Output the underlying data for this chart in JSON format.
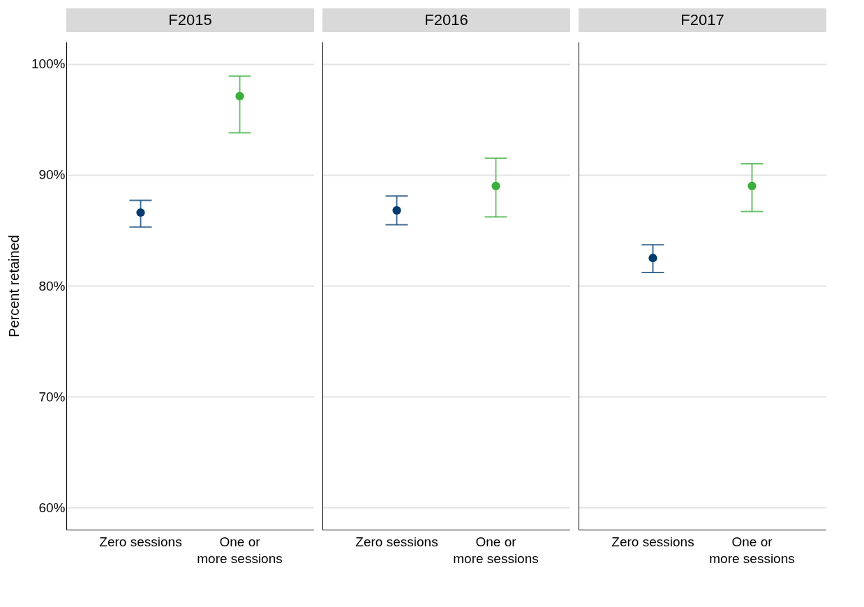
{
  "chart_data": [
    {
      "type": "scatter",
      "title": "F2015",
      "ylabel": "Percent retained",
      "categories": [
        "Zero sessions",
        "One or more sessions"
      ],
      "values": [
        86.6,
        97.1
      ],
      "colors": [
        "#003b6f",
        "#3cae3c"
      ],
      "errors": [
        [
          85.3,
          87.7
        ],
        [
          93.8,
          98.9
        ]
      ],
      "ylim": [
        58,
        102
      ],
      "yticks": [
        {
          "value": 60,
          "label": "60%"
        },
        {
          "value": 70,
          "label": "70%"
        },
        {
          "value": 80,
          "label": "80%"
        },
        {
          "value": 90,
          "label": "90%"
        },
        {
          "value": 100,
          "label": "100%"
        }
      ],
      "grid": "y",
      "marker": "circle"
    },
    {
      "type": "scatter",
      "title": "F2016",
      "categories": [
        "Zero sessions",
        "One or more sessions"
      ],
      "values": [
        86.8,
        89.0
      ],
      "colors": [
        "#003b6f",
        "#3cae3c"
      ],
      "errors": [
        [
          85.5,
          88.1
        ],
        [
          86.2,
          91.5
        ]
      ],
      "ylim": [
        58,
        102
      ],
      "yticks": [
        60,
        70,
        80,
        90,
        100
      ],
      "grid": "y",
      "marker": "circle",
      "tick_labels": "x"
    },
    {
      "type": "scatter",
      "title": "F2017",
      "categories": [
        "Zero sessions",
        "One or more sessions"
      ],
      "values": [
        82.5,
        89.0
      ],
      "colors": [
        "#003b6f",
        "#3cae3c"
      ],
      "errors": [
        [
          81.2,
          83.7
        ],
        [
          86.7,
          91.0
        ]
      ],
      "ylim": [
        58,
        102
      ],
      "yticks": [
        60,
        70,
        80,
        90,
        100
      ],
      "grid": "y",
      "marker": "circle",
      "tick_labels": "x"
    }
  ]
}
